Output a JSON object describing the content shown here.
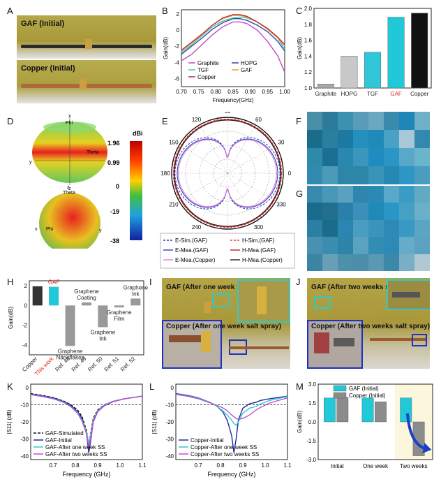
{
  "panel_labels": [
    "A",
    "B",
    "C",
    "D",
    "E",
    "F",
    "G",
    "H",
    "I",
    "J",
    "K",
    "L",
    "M"
  ],
  "panelA": {
    "top_label": "GAF (Initial)",
    "bottom_label": "Copper (Initial)"
  },
  "chartB": {
    "type": "line",
    "ylabel": "Gain(dB)",
    "xlabel": "Frequency(GHz)",
    "xlim": [
      0.7,
      1.0
    ],
    "ylim": [
      -7,
      2.5
    ],
    "xticks": [
      "0.70",
      "0.75",
      "0.80",
      "0.85",
      "0.90",
      "0.95",
      "1.00"
    ],
    "yticks": [
      "2",
      "0",
      "-2",
      "-4",
      "-6"
    ],
    "x": [
      0.7,
      0.73,
      0.76,
      0.79,
      0.82,
      0.85,
      0.87,
      0.89,
      0.92,
      0.95,
      0.98,
      1.0
    ],
    "series": [
      {
        "name": "Graphite",
        "color": "#c048c0",
        "values": [
          -3.8,
          -3.0,
          -1.8,
          -0.6,
          0.4,
          1.0,
          1.0,
          0.8,
          0.0,
          -1.4,
          -3.2,
          -5.2
        ]
      },
      {
        "name": "HOPG",
        "color": "#3048a8",
        "values": [
          -3.0,
          -2.0,
          -1.0,
          0.1,
          0.9,
          1.4,
          1.4,
          1.2,
          0.6,
          -0.2,
          -1.4,
          -2.6
        ]
      },
      {
        "name": "TGF",
        "color": "#40c8c0",
        "values": [
          -2.8,
          -1.8,
          -0.7,
          0.4,
          1.1,
          1.5,
          1.6,
          1.5,
          1.0,
          0.1,
          -1.0,
          -2.4
        ]
      },
      {
        "name": "GAF",
        "color": "#e8a040",
        "values": [
          -2.6,
          -1.6,
          -0.6,
          0.6,
          1.4,
          1.8,
          1.8,
          1.6,
          1.0,
          0.1,
          -1.0,
          -2.0
        ]
      },
      {
        "name": "Copper",
        "color": "#c03030",
        "values": [
          -2.5,
          -1.5,
          -0.5,
          0.6,
          1.5,
          1.9,
          1.9,
          1.7,
          1.0,
          0.2,
          -0.9,
          -1.8
        ]
      }
    ]
  },
  "chartC": {
    "type": "bar",
    "ylabel": "Gain(dB)",
    "ylim": [
      1.0,
      2.0
    ],
    "yticks": [
      "2.0",
      "1.8",
      "1.6",
      "1.4",
      "1.2",
      "1.0"
    ],
    "categories": [
      "Graphite",
      "HOPG",
      "TGF",
      "GAF",
      "Copper"
    ],
    "values": [
      1.05,
      1.4,
      1.45,
      1.89,
      1.94
    ],
    "colors": [
      "#a8a8a8",
      "#c8c8c8",
      "#30c8d8",
      "#20c8d8",
      "#111111"
    ],
    "label_colors": [
      "#222",
      "#222",
      "#222",
      "#e02020",
      "#222"
    ]
  },
  "panelD": {
    "unit": "dBi",
    "colorbar_ticks": [
      "1.96",
      "0.99",
      "0",
      "-19",
      "-38"
    ],
    "top_axes": {
      "x": "x",
      "phi": "Phi",
      "theta": "Theta",
      "y": "y",
      "z": "z"
    },
    "bottom_axes": {
      "z": "z",
      "theta": "Theta",
      "x": "x",
      "phi": "Phi",
      "y": "y"
    }
  },
  "panelE": {
    "angle_labels": [
      "90",
      "60",
      "30",
      "0",
      "330",
      "300",
      "270",
      "240",
      "210",
      "180",
      "150",
      "120"
    ],
    "legend": [
      {
        "label": "E-Sim.(GAF)",
        "color": "#3040c0",
        "dash": true
      },
      {
        "label": "H-Sim.(GAF)",
        "color": "#e04040",
        "dash": true
      },
      {
        "label": "E-Mea.(GAF)",
        "color": "#3040c0",
        "dash": false
      },
      {
        "label": "H-Mea.(GAF)",
        "color": "#c02020",
        "dash": false
      },
      {
        "label": "E-Mea.(Copper)",
        "color": "#e080d0",
        "dash": false
      },
      {
        "label": "H-Mea.(Copper)",
        "color": "#222222",
        "dash": false
      }
    ]
  },
  "panelF_G": {
    "colors_F": [
      "#4a8fa8",
      "#2d7b9a",
      "#3c90b0",
      "#5a9cb8",
      "#6aa8c0",
      "#3a8aac",
      "#1e86b8",
      "#6fb0c8",
      "#1a6d8a",
      "#2a7ea0",
      "#1c7aa2",
      "#2590c0",
      "#1f8ab8",
      "#48a2c4",
      "#a8c8d8",
      "#3388b0",
      "#2d8aa8",
      "#1b6f92",
      "#2888b0",
      "#3a96bc",
      "#1f8cc0",
      "#2a96c8",
      "#5aa8c8",
      "#6ab4cc",
      "#328ab0",
      "#4a9ab8",
      "#2b86a8",
      "#2b86a8",
      "#3994b8",
      "#2788b4",
      "#2e96c4",
      "#4a9cc0"
    ],
    "colors_G": [
      "#3a8ab0",
      "#4a98b8",
      "#5aa0c0",
      "#2e86ac",
      "#2a8ab4",
      "#5aa8c8",
      "#3a9cc4",
      "#62aac4",
      "#186c8c",
      "#246e8e",
      "#2a80a8",
      "#3a90b8",
      "#1f8ab8",
      "#2a96c8",
      "#46a0c4",
      "#6ab0c8",
      "#2b7ea4",
      "#1a6d8a",
      "#2a86b0",
      "#4a9cc0",
      "#3a94bc",
      "#2d8ab4",
      "#3a98c4",
      "#5aa4c4",
      "#4a90b0",
      "#3a8cb0",
      "#2c84a8",
      "#5aa2c0",
      "#328cb4",
      "#2e8ab4",
      "#66acc8",
      "#5aa2c0",
      "#3a84a4",
      "#6a9eb8",
      "#4c90ac",
      "#4a8eaa",
      "#5a98b4",
      "#3c88a8",
      "#7aaec4",
      "#b0c8d4"
    ]
  },
  "chartH": {
    "type": "bar",
    "ylabel": "Gain(dB)",
    "ylim": [
      -5,
      2.5
    ],
    "yticks": [
      "2",
      "0",
      "-2",
      "-4"
    ],
    "categories": [
      "Copper",
      "This work",
      "Ref. 48",
      "Ref. 49",
      "Ref. 50",
      "Ref. 51",
      "Ref. 52"
    ],
    "values": [
      1.94,
      1.89,
      -4.1,
      0.3,
      -2.2,
      -0.2,
      0.7
    ],
    "top_labels": [
      "",
      "GAF",
      "Graphene\nNanoflakes",
      "Graphene\nCoating",
      "Graphene\nInk",
      "Graphene\nFilm",
      "Graphene\nInk"
    ],
    "label_colors": [
      "#222",
      "#e02020",
      "#222",
      "#222",
      "#222",
      "#222",
      "#222"
    ]
  },
  "panelI": {
    "top_label": "GAF (After one week salt spray)",
    "bottom_label": "Copper (After one week salt spray)"
  },
  "panelJ": {
    "top_label": "GAF (After two weeks salt spray)",
    "bottom_label": "Copper (After two weeks salt spray)"
  },
  "chartK": {
    "type": "line",
    "ylabel": "|S11| (dB)",
    "xlabel": "Frequency (GHz)",
    "xlim": [
      0.6,
      1.1
    ],
    "ylim": [
      -42,
      2
    ],
    "xticks": [
      "0.7",
      "0.8",
      "0.9",
      "1.0",
      "1.1"
    ],
    "yticks": [
      "0",
      "-10",
      "-20",
      "-30",
      "-40"
    ],
    "x": [
      0.6,
      0.65,
      0.7,
      0.75,
      0.78,
      0.81,
      0.83,
      0.85,
      0.86,
      0.87,
      0.88,
      0.9,
      0.93,
      0.97,
      1.02,
      1.1
    ],
    "series": [
      {
        "name": "GAF-Simulated",
        "color": "#111111",
        "dash": true,
        "values": [
          -3.5,
          -4.5,
          -5.8,
          -8,
          -10,
          -13,
          -17,
          -25,
          -34,
          -26,
          -18,
          -13,
          -10,
          -8,
          -6.5,
          -5
        ]
      },
      {
        "name": "GAF-Initial",
        "color": "#1a2a9a",
        "dash": false,
        "values": [
          -3.8,
          -4.8,
          -6,
          -8.3,
          -10.5,
          -14,
          -18,
          -27,
          -38,
          -30,
          -20,
          -14,
          -10.5,
          -8.2,
          -6.6,
          -5
        ]
      },
      {
        "name": "GAF-After one week SS",
        "color": "#30c8d0",
        "dash": false,
        "values": [
          -4,
          -5,
          -6.3,
          -8.6,
          -11,
          -14.5,
          -19,
          -26,
          -32,
          -28,
          -19,
          -13.5,
          -10.2,
          -8,
          -6.5,
          -5
        ]
      },
      {
        "name": "GAF-After two weeks SS",
        "color": "#c050d0",
        "dash": false,
        "values": [
          -4.2,
          -5.2,
          -6.5,
          -8.8,
          -11.2,
          -15,
          -19.5,
          -27,
          -35,
          -29,
          -19.5,
          -13.8,
          -10.3,
          -8,
          -6.5,
          -5
        ]
      }
    ],
    "ref_line": -10
  },
  "chartL": {
    "type": "line",
    "ylabel": "|S11| (dB)",
    "xlabel": "Frequency (GHz)",
    "xlim": [
      0.6,
      1.1
    ],
    "ylim": [
      -42,
      2
    ],
    "xticks": [
      "0.7",
      "0.8",
      "0.9",
      "1.0",
      "1.1"
    ],
    "yticks": [
      "0",
      "-10",
      "-20",
      "-30",
      "-40"
    ],
    "x": [
      0.6,
      0.65,
      0.7,
      0.75,
      0.78,
      0.81,
      0.83,
      0.85,
      0.86,
      0.87,
      0.88,
      0.9,
      0.93,
      0.96,
      0.98,
      1.02,
      1.1
    ],
    "series": [
      {
        "name": "Copper-Initial",
        "color": "#1a2a9a",
        "values": [
          -3.5,
          -4.5,
          -6,
          -8.5,
          -10.5,
          -14,
          -19,
          -28,
          -38,
          -30,
          -19,
          -12,
          -9.5,
          -8.5,
          -7.5,
          -6.5,
          -5
        ]
      },
      {
        "name": "Copper-After one week SS",
        "color": "#30c8d0",
        "values": [
          -3.8,
          -4.8,
          -6.2,
          -8.6,
          -10.6,
          -13.5,
          -16,
          -19,
          -21,
          -22,
          -20,
          -15,
          -12,
          -11,
          -9.5,
          -7.5,
          -5.2
        ]
      },
      {
        "name": "Copper-After two weeks SS",
        "color": "#c050d0",
        "values": [
          -4,
          -5,
          -6.5,
          -8.8,
          -10.2,
          -11.8,
          -13.5,
          -16,
          -17,
          -18,
          -18.5,
          -18,
          -16,
          -13,
          -11.5,
          -9,
          -6
        ]
      }
    ],
    "ref_line": -10
  },
  "chartM": {
    "type": "bar",
    "ylabel": "Gain(dB)",
    "ylim": [
      -3.0,
      3.0
    ],
    "yticks": [
      "3.0",
      "1.5",
      "0.0",
      "-1.5",
      "-3.0"
    ],
    "categories": [
      "Initial",
      "One week",
      "Two weeks"
    ],
    "series": [
      {
        "name": "GAF (Initial)",
        "color": "#20c8d8",
        "values": [
          1.9,
          1.9,
          1.9
        ]
      },
      {
        "name": "Copper (Initial)",
        "color": "#8c8c8c",
        "values": [
          1.95,
          1.6,
          -2.7
        ]
      }
    ]
  }
}
